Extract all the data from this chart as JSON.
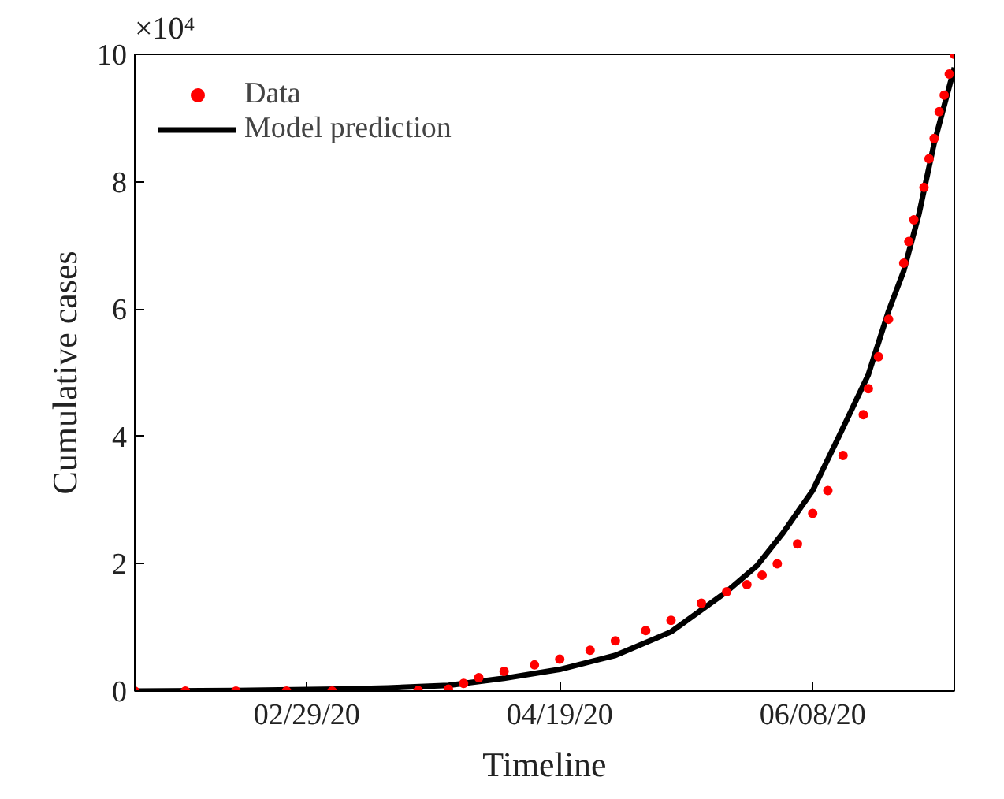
{
  "chart_data": {
    "type": "scatter",
    "xlabel": "Timeline",
    "ylabel": "Cumulative cases",
    "annotations": [
      "×10⁴"
    ],
    "xlim": [
      "2020-01-26",
      "2020-07-06"
    ],
    "xticks": [
      {
        "value": "2020-02-29",
        "label": "02/29/20"
      },
      {
        "value": "2020-04-19",
        "label": "04/19/20"
      },
      {
        "value": "2020-06-08",
        "label": "06/08/20"
      }
    ],
    "ylim": [
      0,
      10
    ],
    "yticks": [
      0,
      2,
      4,
      6,
      8,
      10
    ],
    "grid": false,
    "legend": "top left",
    "series": [
      {
        "name": "Data",
        "color": "#ff0000",
        "marker": "circle",
        "x": [
          "2020-01-26",
          "2020-02-05",
          "2020-02-15",
          "2020-02-25",
          "2020-03-05",
          "2020-03-22",
          "2020-03-28",
          "2020-03-31",
          "2020-04-03",
          "2020-04-08",
          "2020-04-14",
          "2020-04-19",
          "2020-04-25",
          "2020-04-30",
          "2020-05-06",
          "2020-05-11",
          "2020-05-17",
          "2020-05-22",
          "2020-05-26",
          "2020-05-29",
          "2020-06-01",
          "2020-06-05",
          "2020-06-08",
          "2020-06-11",
          "2020-06-14",
          "2020-06-18",
          "2020-06-19",
          "2020-06-21",
          "2020-06-23",
          "2020-06-26",
          "2020-06-27",
          "2020-06-28",
          "2020-06-30",
          "2020-07-01",
          "2020-07-02",
          "2020-07-03",
          "2020-07-04",
          "2020-07-05",
          "2020-07-06"
        ],
        "values": [
          0,
          0,
          0,
          0,
          0,
          0.01,
          0.03,
          0.12,
          0.21,
          0.31,
          0.41,
          0.5,
          0.64,
          0.79,
          0.95,
          1.11,
          1.38,
          1.56,
          1.67,
          1.82,
          2.0,
          2.31,
          2.79,
          3.15,
          3.7,
          4.34,
          4.75,
          5.25,
          5.84,
          6.72,
          7.06,
          7.4,
          7.91,
          8.36,
          8.68,
          9.1,
          9.36,
          9.69,
          10.0
        ]
      },
      {
        "name": "Model prediction",
        "type": "line",
        "color": "#000000",
        "x": [
          "2020-01-26",
          "2020-02-15",
          "2020-03-06",
          "2020-03-16",
          "2020-03-28",
          "2020-04-08",
          "2020-04-19",
          "2020-04-30",
          "2020-05-11",
          "2020-05-22",
          "2020-05-28",
          "2020-06-02",
          "2020-06-08",
          "2020-06-13",
          "2020-06-19",
          "2020-06-23",
          "2020-06-26",
          "2020-06-29",
          "2020-07-02",
          "2020-07-06"
        ],
        "values": [
          0,
          0.01,
          0.03,
          0.05,
          0.09,
          0.2,
          0.34,
          0.56,
          0.93,
          1.56,
          1.97,
          2.47,
          3.15,
          3.97,
          4.97,
          5.97,
          6.6,
          7.49,
          8.6,
          9.79
        ]
      }
    ]
  }
}
